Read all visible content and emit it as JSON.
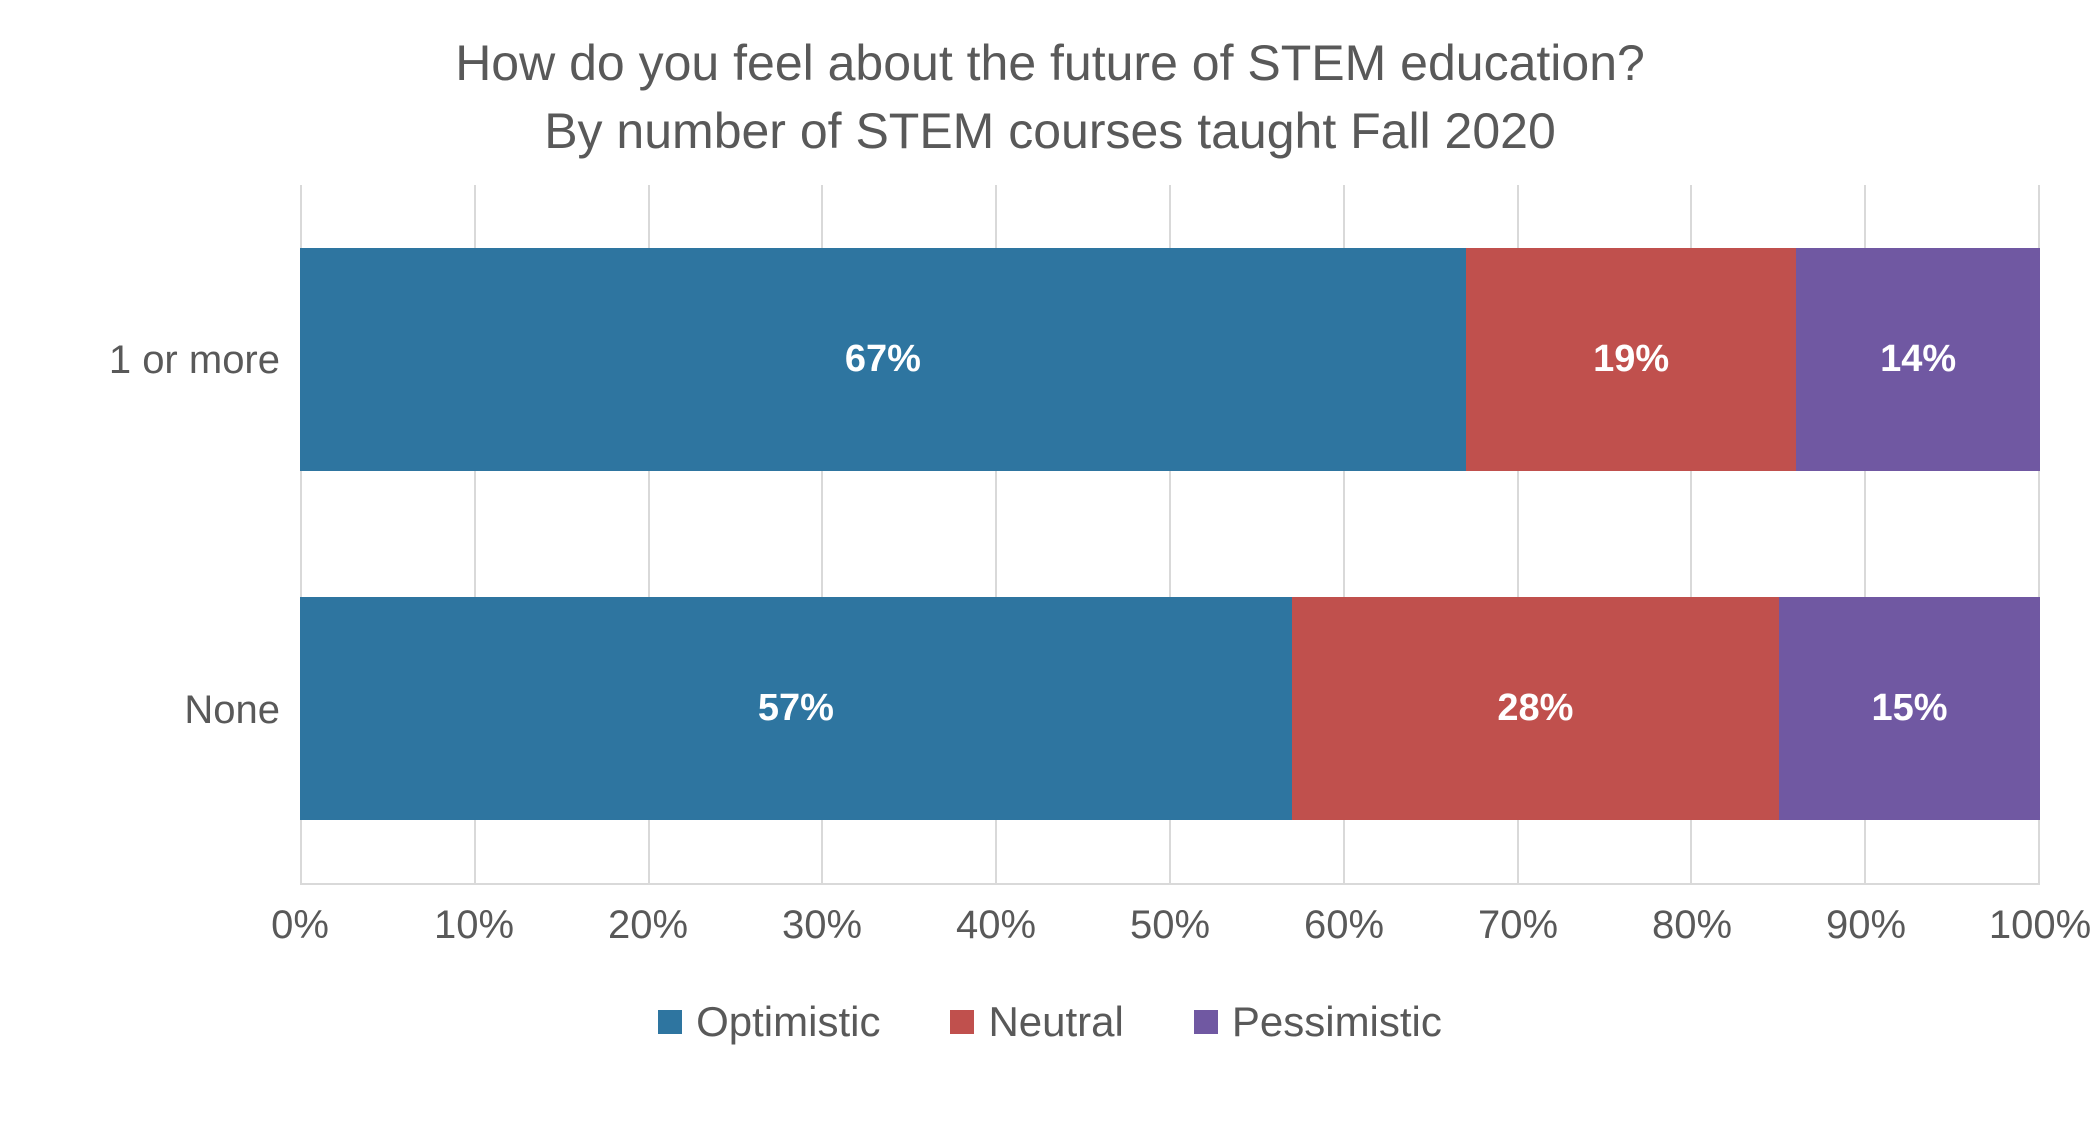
{
  "chart": {
    "type": "stacked-bar-horizontal",
    "title_line1": "How do you feel about the future of STEM education?",
    "title_line2": "By number of STEM courses taught Fall 2020",
    "title_fontsize": 50,
    "title_color": "#595959",
    "background_color": "#ffffff",
    "grid_color": "#d9d9d9",
    "axis_label_color": "#595959",
    "axis_label_fontsize": 40,
    "data_label_fontsize": 38,
    "data_label_color": "#ffffff",
    "bar_height_pct": 32,
    "xlim": [
      0,
      100
    ],
    "xtick_step": 10,
    "xtick_suffix": "%",
    "categories": [
      "1 or more",
      "None"
    ],
    "series": [
      {
        "name": "Optimistic",
        "color": "#2e75a0"
      },
      {
        "name": "Neutral",
        "color": "#c0504d"
      },
      {
        "name": "Pessimistic",
        "color": "#7058a2"
      }
    ],
    "rows": [
      {
        "label": "1 or more",
        "values": [
          67,
          19,
          14
        ]
      },
      {
        "label": "None",
        "values": [
          57,
          28,
          15
        ]
      }
    ],
    "legend_fontsize": 42
  }
}
